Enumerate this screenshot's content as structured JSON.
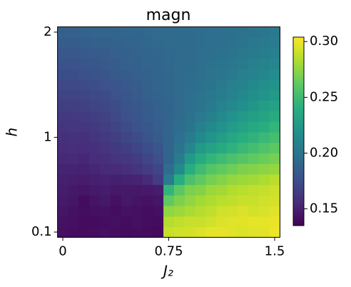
{
  "chart_data": {
    "type": "heatmap",
    "title": "magn",
    "xlabel": "J₂",
    "ylabel": "h",
    "colormap": "viridis",
    "x": [
      0,
      0.075,
      0.15,
      0.225,
      0.3,
      0.375,
      0.45,
      0.525,
      0.6,
      0.675,
      0.75,
      0.825,
      0.9,
      0.975,
      1.05,
      1.125,
      1.2,
      1.275,
      1.35,
      1.425,
      1.5
    ],
    "y": [
      0.1,
      0.2,
      0.3,
      0.4,
      0.5,
      0.6,
      0.7,
      0.8,
      0.9,
      1.0,
      1.1,
      1.2,
      1.3,
      1.4,
      1.5,
      1.6,
      1.7,
      1.8,
      1.9,
      2.0
    ],
    "z": [
      [
        0.142,
        0.141,
        0.14,
        0.141,
        0.142,
        0.141,
        0.14,
        0.141,
        0.14,
        0.139,
        0.29,
        0.292,
        0.293,
        0.295,
        0.298,
        0.298,
        0.296,
        0.295,
        0.296,
        0.297,
        0.3
      ],
      [
        0.143,
        0.142,
        0.14,
        0.14,
        0.141,
        0.142,
        0.14,
        0.142,
        0.141,
        0.14,
        0.285,
        0.288,
        0.29,
        0.29,
        0.292,
        0.295,
        0.296,
        0.297,
        0.298,
        0.298,
        0.299
      ],
      [
        0.145,
        0.143,
        0.141,
        0.142,
        0.143,
        0.141,
        0.143,
        0.142,
        0.141,
        0.142,
        0.275,
        0.278,
        0.282,
        0.285,
        0.288,
        0.292,
        0.293,
        0.295,
        0.293,
        0.294,
        0.296
      ],
      [
        0.147,
        0.145,
        0.14,
        0.144,
        0.146,
        0.142,
        0.146,
        0.144,
        0.143,
        0.145,
        0.262,
        0.27,
        0.275,
        0.28,
        0.283,
        0.286,
        0.288,
        0.29,
        0.29,
        0.292,
        0.293
      ],
      [
        0.148,
        0.146,
        0.145,
        0.147,
        0.148,
        0.146,
        0.147,
        0.146,
        0.147,
        0.148,
        0.245,
        0.26,
        0.27,
        0.272,
        0.278,
        0.28,
        0.284,
        0.286,
        0.288,
        0.289,
        0.291
      ],
      [
        0.15,
        0.149,
        0.148,
        0.15,
        0.151,
        0.15,
        0.151,
        0.152,
        0.155,
        0.165,
        0.205,
        0.24,
        0.255,
        0.262,
        0.268,
        0.272,
        0.276,
        0.278,
        0.28,
        0.283,
        0.286
      ],
      [
        0.152,
        0.152,
        0.151,
        0.153,
        0.155,
        0.155,
        0.158,
        0.16,
        0.165,
        0.17,
        0.195,
        0.215,
        0.24,
        0.25,
        0.258,
        0.262,
        0.266,
        0.27,
        0.272,
        0.274,
        0.276
      ],
      [
        0.154,
        0.155,
        0.153,
        0.156,
        0.158,
        0.16,
        0.162,
        0.165,
        0.17,
        0.176,
        0.19,
        0.205,
        0.225,
        0.238,
        0.245,
        0.25,
        0.255,
        0.258,
        0.262,
        0.265,
        0.268
      ],
      [
        0.156,
        0.157,
        0.156,
        0.158,
        0.16,
        0.163,
        0.166,
        0.17,
        0.175,
        0.18,
        0.19,
        0.2,
        0.212,
        0.225,
        0.232,
        0.238,
        0.243,
        0.248,
        0.252,
        0.256,
        0.26
      ],
      [
        0.158,
        0.159,
        0.158,
        0.16,
        0.163,
        0.166,
        0.17,
        0.174,
        0.178,
        0.183,
        0.19,
        0.196,
        0.205,
        0.215,
        0.222,
        0.228,
        0.235,
        0.24,
        0.244,
        0.248,
        0.252
      ],
      [
        0.16,
        0.161,
        0.161,
        0.163,
        0.166,
        0.169,
        0.173,
        0.177,
        0.181,
        0.185,
        0.19,
        0.195,
        0.2,
        0.208,
        0.215,
        0.22,
        0.227,
        0.232,
        0.236,
        0.24,
        0.245
      ],
      [
        0.163,
        0.163,
        0.164,
        0.166,
        0.168,
        0.172,
        0.176,
        0.179,
        0.183,
        0.186,
        0.19,
        0.194,
        0.198,
        0.203,
        0.208,
        0.214,
        0.22,
        0.225,
        0.23,
        0.233,
        0.238
      ],
      [
        0.166,
        0.166,
        0.167,
        0.169,
        0.171,
        0.174,
        0.178,
        0.181,
        0.184,
        0.187,
        0.19,
        0.193,
        0.197,
        0.2,
        0.204,
        0.209,
        0.214,
        0.219,
        0.224,
        0.228,
        0.232
      ],
      [
        0.169,
        0.169,
        0.17,
        0.172,
        0.174,
        0.177,
        0.18,
        0.183,
        0.186,
        0.188,
        0.191,
        0.193,
        0.196,
        0.199,
        0.202,
        0.206,
        0.21,
        0.214,
        0.218,
        0.222,
        0.226
      ],
      [
        0.172,
        0.172,
        0.173,
        0.175,
        0.177,
        0.179,
        0.182,
        0.184,
        0.187,
        0.189,
        0.191,
        0.193,
        0.195,
        0.198,
        0.2,
        0.203,
        0.207,
        0.21,
        0.214,
        0.218,
        0.221
      ],
      [
        0.175,
        0.175,
        0.176,
        0.178,
        0.18,
        0.182,
        0.184,
        0.186,
        0.188,
        0.19,
        0.191,
        0.193,
        0.195,
        0.197,
        0.199,
        0.201,
        0.204,
        0.207,
        0.21,
        0.213,
        0.216
      ],
      [
        0.178,
        0.178,
        0.179,
        0.18,
        0.182,
        0.184,
        0.186,
        0.187,
        0.189,
        0.19,
        0.192,
        0.193,
        0.194,
        0.196,
        0.198,
        0.2,
        0.202,
        0.204,
        0.207,
        0.21,
        0.212
      ],
      [
        0.181,
        0.181,
        0.182,
        0.183,
        0.184,
        0.186,
        0.187,
        0.188,
        0.19,
        0.191,
        0.192,
        0.193,
        0.194,
        0.195,
        0.197,
        0.198,
        0.2,
        0.202,
        0.204,
        0.206,
        0.208
      ],
      [
        0.184,
        0.184,
        0.185,
        0.186,
        0.187,
        0.188,
        0.189,
        0.19,
        0.191,
        0.192,
        0.193,
        0.193,
        0.194,
        0.195,
        0.196,
        0.197,
        0.198,
        0.2,
        0.202,
        0.204,
        0.205
      ],
      [
        0.187,
        0.187,
        0.188,
        0.189,
        0.189,
        0.19,
        0.191,
        0.191,
        0.192,
        0.193,
        0.193,
        0.194,
        0.194,
        0.195,
        0.196,
        0.196,
        0.197,
        0.198,
        0.2,
        0.201,
        0.203
      ]
    ],
    "xlim": [
      -0.0375,
      1.5375
    ],
    "ylim": [
      0.05,
      2.05
    ],
    "xticks": [
      0,
      0.75,
      1.5
    ],
    "yticks": [
      0.1,
      1,
      2
    ],
    "clim": [
      0.135,
      0.304
    ],
    "cticks": [
      0.15,
      {
        "value": 0.2,
        "label": "0.20"
      },
      0.25,
      {
        "value": 0.3,
        "label": "0.30"
      }
    ]
  }
}
